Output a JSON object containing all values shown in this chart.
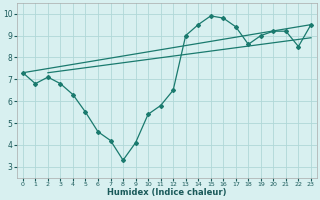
{
  "x": [
    0,
    1,
    2,
    3,
    4,
    5,
    6,
    7,
    8,
    9,
    10,
    11,
    12,
    13,
    14,
    15,
    16,
    17,
    18,
    19,
    20,
    21,
    22,
    23
  ],
  "y_curve": [
    7.3,
    6.8,
    7.1,
    6.8,
    6.3,
    5.5,
    4.6,
    4.2,
    3.3,
    4.1,
    5.4,
    5.8,
    6.5,
    9.0,
    9.5,
    9.9,
    9.8,
    9.4,
    8.6,
    9.0,
    9.2,
    9.2,
    8.5,
    9.5
  ],
  "trend1_x": [
    0,
    23
  ],
  "trend1_y": [
    7.3,
    9.5
  ],
  "trend2_x": [
    2,
    23
  ],
  "trend2_y": [
    7.3,
    8.9
  ],
  "line_color": "#1a7a6e",
  "bg_color": "#d8f0f0",
  "grid_color": "#b0d8d8",
  "xlabel": "Humidex (Indice chaleur)",
  "xlim": [
    -0.5,
    23.5
  ],
  "ylim": [
    2.5,
    10.5
  ],
  "yticks": [
    3,
    4,
    5,
    6,
    7,
    8,
    9,
    10
  ],
  "xticks": [
    0,
    1,
    2,
    3,
    4,
    5,
    6,
    7,
    8,
    9,
    10,
    11,
    12,
    13,
    14,
    15,
    16,
    17,
    18,
    19,
    20,
    21,
    22,
    23
  ],
  "xtick_labels": [
    "0",
    "1",
    "2",
    "3",
    "4",
    "5",
    "6",
    "7",
    "8",
    "9",
    "10",
    "11",
    "12",
    "13",
    "14",
    "15",
    "16",
    "17",
    "18",
    "19",
    "20",
    "21",
    "22",
    "23"
  ]
}
